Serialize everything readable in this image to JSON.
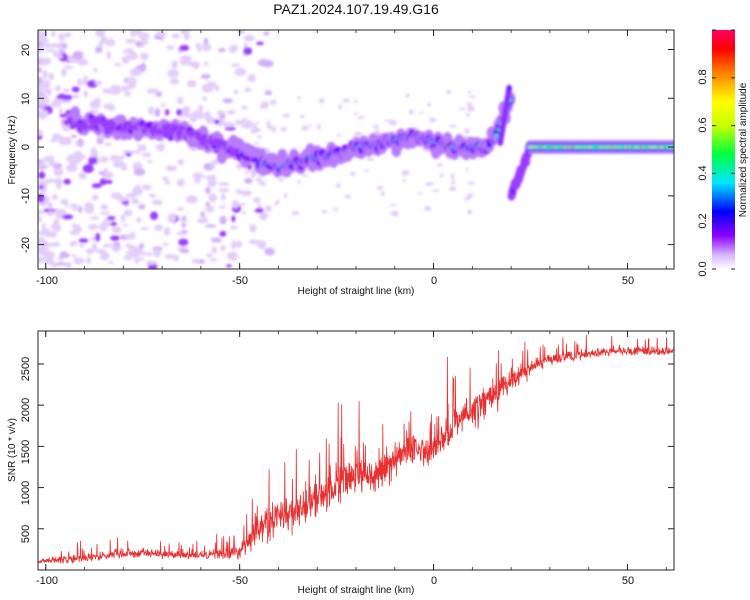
{
  "title": "PAZ1.2024.107.19.49.G16",
  "chart_data": [
    {
      "type": "heatmap",
      "xlabel": "Height of straight line (km)",
      "ylabel": "Frequency (Hz)",
      "xlim": [
        -102,
        62
      ],
      "ylim": [
        -25,
        24
      ],
      "xticks": [
        "-100",
        "-50",
        "0",
        "50"
      ],
      "yticks": [
        "20",
        "10",
        "0",
        "-10",
        "-20"
      ],
      "colorbar": {
        "label": "Normalized spectral amplitude",
        "range": [
          0,
          1
        ],
        "ticks": [
          "0.0",
          "0.2",
          "0.4",
          "0.6",
          "0.8"
        ]
      },
      "ridge": {
        "x": [
          -93,
          -85,
          -78,
          -70,
          -62,
          -55,
          -50,
          -45,
          -40,
          -35,
          -30,
          -25,
          -20,
          -15,
          -10,
          -5,
          0,
          5,
          10,
          14,
          16,
          18,
          20
        ],
        "y": [
          5,
          4.5,
          4,
          3.5,
          2.5,
          0.5,
          -1,
          -3,
          -4,
          -3,
          -2,
          -1.5,
          0,
          0.5,
          1.5,
          2.5,
          1,
          0,
          0,
          0.5,
          2,
          6,
          10
        ],
        "y_after_jump_start": -10,
        "jump_x": [
          20,
          25
        ],
        "flat_x": [
          25,
          62
        ],
        "flat_y": 0
      }
    },
    {
      "type": "line",
      "xlabel": "Height of straight line (km)",
      "ylabel": "SNR (10 * v/v)",
      "xlim": [
        -102,
        62
      ],
      "ylim": [
        0,
        2900
      ],
      "xticks": [
        "-100",
        "-50",
        "0",
        "50"
      ],
      "yticks": [
        "2500",
        "2000",
        "1500",
        "1000",
        "500"
      ],
      "color": "#e83030",
      "series": [
        {
          "x": [
            -102,
            -95,
            -90,
            -85,
            -80,
            -75,
            -70,
            -65,
            -60,
            -55,
            -50,
            -47,
            -45,
            -40,
            -35,
            -30,
            -25,
            -20,
            -15,
            -10,
            -5,
            0,
            5,
            10,
            15,
            20,
            25,
            30,
            35,
            40,
            45,
            50,
            55,
            62
          ],
          "values": [
            100,
            130,
            150,
            170,
            200,
            210,
            190,
            170,
            180,
            190,
            220,
            400,
            500,
            650,
            700,
            850,
            1000,
            1200,
            1100,
            1350,
            1450,
            1500,
            1750,
            1950,
            2100,
            2300,
            2450,
            2550,
            2600,
            2620,
            2650,
            2650,
            2650,
            2650
          ],
          "noise": [
            60,
            90,
            100,
            100,
            120,
            100,
            100,
            100,
            100,
            120,
            160,
            250,
            300,
            400,
            400,
            450,
            500,
            500,
            450,
            400,
            400,
            400,
            400,
            400,
            350,
            300,
            200,
            150,
            120,
            100,
            100,
            100,
            100,
            100
          ]
        }
      ]
    }
  ]
}
